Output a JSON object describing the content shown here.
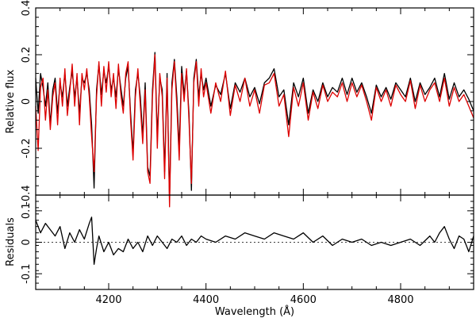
{
  "chart_data": [
    {
      "type": "line",
      "panel": "top",
      "xlabel": "",
      "ylabel": "Relative flux",
      "xlim": [
        4050,
        4950
      ],
      "ylim": [
        -0.4,
        0.4
      ],
      "yticks": [
        -0.4,
        -0.2,
        0,
        0.2,
        0.4
      ],
      "ytick_labels": [
        "-0.4",
        "-0.2",
        "0",
        "0.2",
        "0.4"
      ],
      "xticks": [
        4200,
        4400,
        4600,
        4800
      ],
      "grid": false,
      "series": [
        {
          "color": "#000000",
          "x": [
            4050,
            4055,
            4060,
            4065,
            4070,
            4075,
            4080,
            4085,
            4090,
            4095,
            4100,
            4105,
            4110,
            4115,
            4120,
            4125,
            4130,
            4135,
            4140,
            4145,
            4150,
            4155,
            4160,
            4165,
            4170,
            4175,
            4180,
            4185,
            4190,
            4195,
            4200,
            4205,
            4210,
            4215,
            4220,
            4225,
            4230,
            4235,
            4240,
            4245,
            4250,
            4255,
            4260,
            4265,
            4270,
            4275,
            4280,
            4285,
            4290,
            4295,
            4300,
            4305,
            4310,
            4315,
            4320,
            4325,
            4330,
            4335,
            4340,
            4345,
            4350,
            4355,
            4360,
            4365,
            4370,
            4375,
            4380,
            4385,
            4390,
            4395,
            4400,
            4410,
            4420,
            4430,
            4440,
            4450,
            4460,
            4470,
            4480,
            4490,
            4500,
            4510,
            4520,
            4530,
            4540,
            4550,
            4560,
            4570,
            4580,
            4590,
            4600,
            4610,
            4620,
            4630,
            4640,
            4650,
            4660,
            4670,
            4680,
            4690,
            4700,
            4710,
            4720,
            4730,
            4740,
            4750,
            4760,
            4770,
            4780,
            4790,
            4800,
            4810,
            4820,
            4830,
            4840,
            4850,
            4860,
            4870,
            4880,
            4890,
            4900,
            4910,
            4920,
            4930,
            4940,
            4950
          ],
          "y": [
            0.1,
            -0.05,
            0.12,
            0.06,
            -0.02,
            0.08,
            -0.1,
            0.05,
            0.1,
            -0.05,
            0.08,
            0.02,
            0.12,
            -0.02,
            0.06,
            0.13,
            0.02,
            0.1,
            -0.05,
            0.1,
            0.08,
            0.12,
            0.05,
            -0.1,
            -0.37,
            0.05,
            0.16,
            0.03,
            0.13,
            0.08,
            0.15,
            0.05,
            0.1,
            0.02,
            0.14,
            0.06,
            -0.02,
            0.1,
            0.15,
            -0.05,
            -0.22,
            0.05,
            0.12,
            0.02,
            -0.15,
            0.08,
            -0.28,
            -0.32,
            0.05,
            0.21,
            -0.15,
            0.1,
            0.05,
            -0.3,
            0.12,
            -0.42,
            0.08,
            0.18,
            0.02,
            -0.2,
            0.15,
            0.03,
            0.13,
            -0.05,
            -0.38,
            0.1,
            0.18,
            0.02,
            0.12,
            0.05,
            0.1,
            -0.02,
            0.07,
            0.03,
            0.12,
            -0.03,
            0.08,
            0.04,
            0.1,
            0.02,
            0.06,
            -0.01,
            0.08,
            0.1,
            0.14,
            0.02,
            0.05,
            -0.1,
            0.08,
            0.02,
            0.1,
            -0.05,
            0.05,
            0.0,
            0.08,
            0.02,
            0.06,
            0.04,
            0.1,
            0.03,
            0.1,
            0.04,
            0.08,
            0.02,
            -0.05,
            0.07,
            0.02,
            0.06,
            0.01,
            0.08,
            0.05,
            0.02,
            0.1,
            0.0,
            0.08,
            0.03,
            0.06,
            0.1,
            0.02,
            0.12,
            0.01,
            0.08,
            0.02,
            0.05,
            0.01,
            -0.04
          ]
        },
        {
          "color": "#dd0000",
          "x": [
            4050,
            4055,
            4060,
            4065,
            4070,
            4075,
            4080,
            4085,
            4090,
            4095,
            4100,
            4105,
            4110,
            4115,
            4120,
            4125,
            4130,
            4135,
            4140,
            4145,
            4150,
            4155,
            4160,
            4165,
            4170,
            4175,
            4180,
            4185,
            4190,
            4195,
            4200,
            4205,
            4210,
            4215,
            4220,
            4225,
            4230,
            4235,
            4240,
            4245,
            4250,
            4255,
            4260,
            4265,
            4270,
            4275,
            4280,
            4285,
            4290,
            4295,
            4300,
            4305,
            4310,
            4315,
            4320,
            4325,
            4330,
            4335,
            4340,
            4345,
            4350,
            4355,
            4360,
            4365,
            4370,
            4375,
            4380,
            4385,
            4390,
            4395,
            4400,
            4410,
            4420,
            4430,
            4440,
            4450,
            4460,
            4470,
            4480,
            4490,
            4500,
            4510,
            4520,
            4530,
            4540,
            4550,
            4560,
            4570,
            4580,
            4590,
            4600,
            4610,
            4620,
            4630,
            4640,
            4650,
            4660,
            4670,
            4680,
            4690,
            4700,
            4710,
            4720,
            4730,
            4740,
            4750,
            4760,
            4770,
            4780,
            4790,
            4800,
            4810,
            4820,
            4830,
            4840,
            4850,
            4860,
            4870,
            4880,
            4890,
            4900,
            4910,
            4920,
            4930,
            4940,
            4950
          ],
          "y": [
            -0.02,
            -0.21,
            0.06,
            0.1,
            -0.08,
            0.05,
            -0.12,
            0.02,
            0.08,
            -0.1,
            0.1,
            -0.02,
            0.14,
            -0.06,
            0.04,
            0.16,
            -0.02,
            0.12,
            -0.1,
            0.12,
            0.05,
            0.14,
            0.02,
            -0.15,
            -0.3,
            0.02,
            0.17,
            -0.02,
            0.15,
            0.04,
            0.17,
            0.02,
            0.12,
            -0.03,
            0.16,
            0.03,
            -0.05,
            0.12,
            0.17,
            -0.08,
            -0.25,
            0.02,
            0.14,
            -0.02,
            -0.18,
            0.05,
            -0.3,
            -0.35,
            0.02,
            0.2,
            -0.2,
            0.12,
            0.02,
            -0.33,
            0.1,
            -0.45,
            0.05,
            0.17,
            -0.02,
            -0.25,
            0.12,
            0.0,
            0.14,
            -0.08,
            -0.35,
            0.08,
            0.17,
            -0.02,
            0.14,
            0.02,
            0.08,
            -0.05,
            0.08,
            0.0,
            0.13,
            -0.06,
            0.07,
            0.0,
            0.1,
            -0.02,
            0.05,
            -0.05,
            0.07,
            0.08,
            0.12,
            -0.02,
            0.03,
            -0.15,
            0.06,
            -0.02,
            0.08,
            -0.08,
            0.04,
            -0.03,
            0.07,
            0.0,
            0.04,
            0.02,
            0.08,
            0.0,
            0.08,
            0.02,
            0.07,
            0.0,
            -0.08,
            0.06,
            0.0,
            0.05,
            -0.02,
            0.07,
            0.03,
            0.0,
            0.09,
            -0.03,
            0.07,
            0.0,
            0.05,
            0.08,
            0.0,
            0.1,
            -0.02,
            0.06,
            0.0,
            0.03,
            -0.02,
            -0.07
          ]
        }
      ]
    },
    {
      "type": "line",
      "panel": "bottom",
      "xlabel": "Wavelength (Å)",
      "ylabel": "Residuals",
      "xlim": [
        4050,
        4950
      ],
      "ylim": [
        -0.15,
        0.15
      ],
      "yticks": [
        -0.1,
        0,
        0.1
      ],
      "ytick_labels": [
        "-0.1",
        "0",
        "0.1"
      ],
      "xticks": [
        4200,
        4400,
        4600,
        4800
      ],
      "xtick_labels": [
        "4200",
        "4400",
        "4600",
        "4800"
      ],
      "reference_line": 0,
      "grid": false,
      "series": [
        {
          "color": "#000000",
          "x": [
            4050,
            4060,
            4070,
            4080,
            4090,
            4100,
            4110,
            4120,
            4130,
            4140,
            4150,
            4160,
            4165,
            4170,
            4175,
            4180,
            4190,
            4200,
            4210,
            4220,
            4230,
            4240,
            4250,
            4260,
            4270,
            4280,
            4290,
            4300,
            4310,
            4320,
            4330,
            4340,
            4350,
            4360,
            4370,
            4380,
            4390,
            4400,
            4420,
            4440,
            4460,
            4480,
            4500,
            4520,
            4540,
            4560,
            4580,
            4600,
            4620,
            4640,
            4660,
            4680,
            4700,
            4720,
            4740,
            4760,
            4780,
            4800,
            4820,
            4840,
            4860,
            4870,
            4880,
            4890,
            4900,
            4910,
            4920,
            4930,
            4940,
            4950
          ],
          "y": [
            0.07,
            0.03,
            0.06,
            0.04,
            0.02,
            0.05,
            -0.02,
            0.03,
            0.0,
            0.04,
            0.01,
            0.06,
            0.08,
            -0.07,
            -0.02,
            0.02,
            -0.03,
            0.0,
            -0.04,
            -0.02,
            -0.03,
            0.01,
            -0.02,
            0.0,
            -0.03,
            0.02,
            -0.01,
            0.02,
            0.0,
            -0.02,
            0.01,
            0.0,
            0.02,
            -0.01,
            0.01,
            0.0,
            0.02,
            0.01,
            0.0,
            0.02,
            0.01,
            0.03,
            0.02,
            0.01,
            0.03,
            0.02,
            0.01,
            0.03,
            0.0,
            0.02,
            -0.01,
            0.01,
            0.0,
            0.01,
            -0.01,
            0.0,
            -0.01,
            0.0,
            0.01,
            -0.01,
            0.02,
            0.0,
            0.03,
            0.05,
            0.01,
            -0.02,
            0.02,
            0.01,
            -0.03,
            0.02
          ]
        }
      ]
    }
  ]
}
